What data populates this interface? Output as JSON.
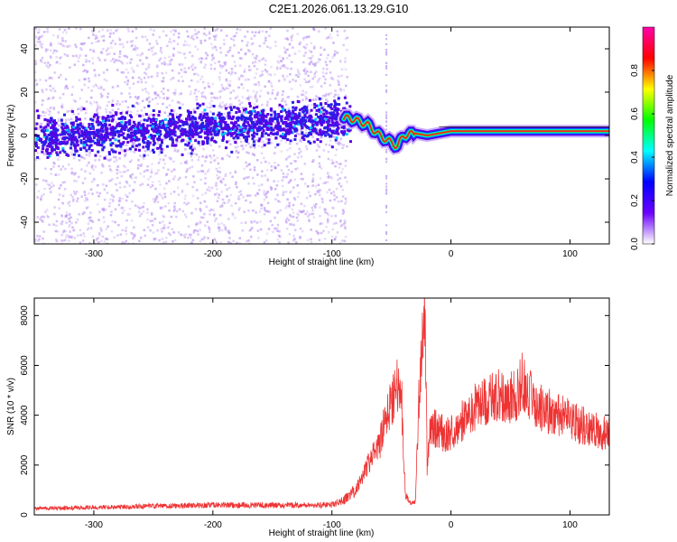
{
  "chart_data": [
    {
      "type": "heatmap",
      "title": "C2E1.2026.061.13.29.G10",
      "xlabel": "Height of straight line (km)",
      "ylabel": "Frequency (Hz)",
      "xlim": [
        -350,
        133
      ],
      "ylim": [
        -50,
        50
      ],
      "xticks": [
        -300,
        -200,
        -100,
        0,
        100
      ],
      "yticks": [
        -40,
        -20,
        0,
        20,
        40
      ],
      "colorbar": {
        "label": "Normalized spectral amplitude",
        "ticks": [
          0.0,
          0.2,
          0.4,
          0.6,
          0.8
        ],
        "range": [
          0,
          1
        ],
        "colormap": [
          "#ffffff",
          "#6a00ff",
          "#0000ff",
          "#00ffff",
          "#00ff00",
          "#ffff00",
          "#ff0000",
          "#ff00aa"
        ]
      },
      "signal_band": [
        {
          "x": -350,
          "y": 0
        },
        {
          "x": -85,
          "y": 8
        },
        {
          "x": -70,
          "y": 5
        },
        {
          "x": -60,
          "y": 0
        },
        {
          "x": -45,
          "y": -5
        },
        {
          "x": -40,
          "y": 0
        },
        {
          "x": -30,
          "y": 1
        },
        {
          "x": -20,
          "y": 0
        },
        {
          "x": 0,
          "y": 2
        },
        {
          "x": 50,
          "y": 2
        },
        {
          "x": 100,
          "y": 2
        },
        {
          "x": 133,
          "y": 2
        }
      ]
    },
    {
      "type": "line",
      "xlabel": "Height of straight line (km)",
      "ylabel": "SNR (10 * v/v)",
      "xlim": [
        -350,
        133
      ],
      "ylim": [
        0,
        8700
      ],
      "xticks": [
        -300,
        -200,
        -100,
        0,
        100
      ],
      "yticks": [
        0,
        2000,
        4000,
        6000,
        8000
      ],
      "series": [
        {
          "color": "#ee3333",
          "x": [
            -350,
            -300,
            -250,
            -200,
            -150,
            -100,
            -90,
            -80,
            -75,
            -70,
            -60,
            -55,
            -50,
            -45,
            -42,
            -40,
            -38,
            -35,
            -30,
            -27,
            -25,
            -22,
            -20,
            -18,
            -15,
            -10,
            -5,
            0,
            10,
            20,
            30,
            40,
            50,
            55,
            60,
            65,
            70,
            80,
            90,
            100,
            110,
            120,
            133
          ],
          "y": [
            250,
            300,
            350,
            400,
            380,
            400,
            600,
            1000,
            1500,
            2000,
            2800,
            3800,
            4600,
            5200,
            5600,
            2500,
            800,
            500,
            500,
            4500,
            6200,
            8700,
            2000,
            3200,
            3500,
            3400,
            3200,
            3300,
            3800,
            4300,
            4600,
            4800,
            4700,
            4800,
            5400,
            4900,
            4500,
            4200,
            4000,
            3800,
            3600,
            3400,
            3200
          ]
        }
      ]
    }
  ]
}
